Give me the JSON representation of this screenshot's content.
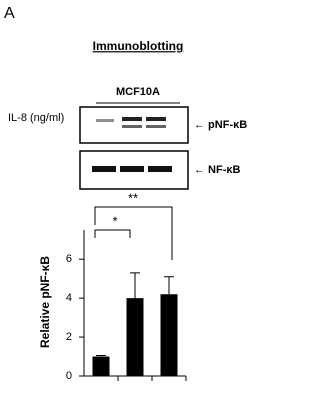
{
  "panel_label": "A",
  "header": {
    "title": "Immunoblotting",
    "cell_line": "MCF10A",
    "treatment_label": "IL-8 (ng/ml)"
  },
  "blots": [
    {
      "label": "← pNF-κB"
    },
    {
      "label": "← NF-κB"
    }
  ],
  "chart_data": {
    "type": "bar",
    "ylabel": "Relative pNF-κB",
    "categories": [
      null,
      null,
      null
    ],
    "values": [
      1.0,
      4.0,
      4.2
    ],
    "errors": [
      0.05,
      1.3,
      0.9
    ],
    "color": "#000000",
    "ylim": [
      0,
      7.5
    ],
    "yticks": [
      0,
      2,
      4,
      6
    ],
    "annotations": [
      "*",
      "**"
    ]
  }
}
